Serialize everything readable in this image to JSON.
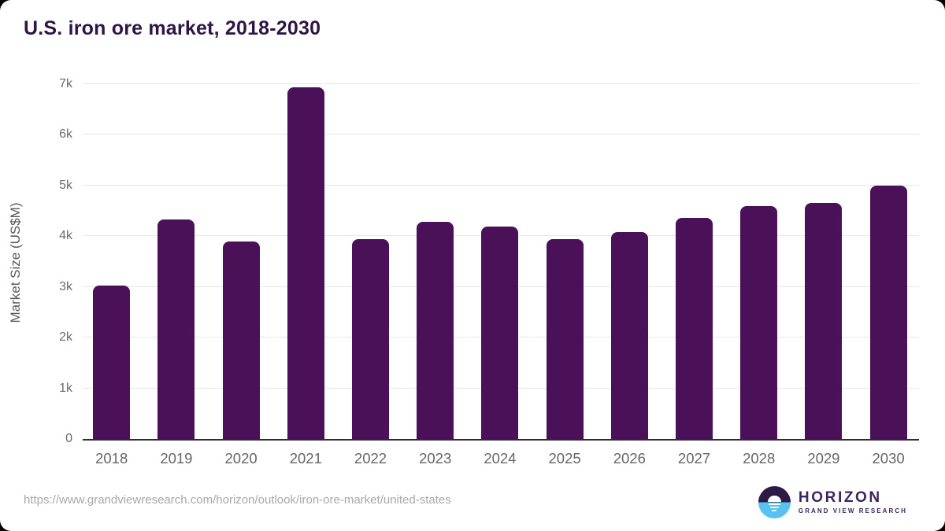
{
  "title": "U.S. iron ore market, 2018-2030",
  "source_url": "https://www.grandviewresearch.com/horizon/outlook/iron-ore-market/united-states",
  "logo": {
    "name": "HORIZON",
    "subtitle": "GRAND VIEW RESEARCH",
    "icon": "horizon-sun-over-water-icon",
    "icon_top_color": "#2e1a47",
    "icon_bottom_color": "#57c3f0"
  },
  "colors": {
    "bar": "#4a1158",
    "title_text": "#2e1547",
    "axis_text": "#666666",
    "gridline": "#e7e7e7",
    "baseline": "#2d2d2d",
    "url_text": "#a8a8a8",
    "background": "#ffffff"
  },
  "chart_data": {
    "type": "bar",
    "title": "U.S. iron ore market, 2018-2030",
    "categories": [
      "2018",
      "2019",
      "2020",
      "2021",
      "2022",
      "2023",
      "2024",
      "2025",
      "2026",
      "2027",
      "2028",
      "2029",
      "2030"
    ],
    "values": [
      3030,
      4330,
      3890,
      6940,
      3940,
      4290,
      4190,
      3950,
      4080,
      4360,
      4600,
      4660,
      5000
    ],
    "xlabel": "",
    "ylabel": "Market Size (US$M)",
    "ylim": [
      0,
      7000
    ],
    "ytick_step": 1000,
    "ytick_labels": [
      "0",
      "1k",
      "2k",
      "3k",
      "4k",
      "5k",
      "6k",
      "7k"
    ],
    "grid": "horizontal",
    "legend_position": "none",
    "bar_color": "#4a1158"
  }
}
